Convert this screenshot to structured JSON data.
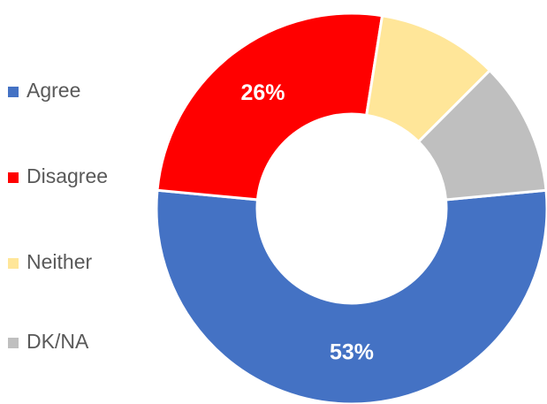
{
  "chart_data": {
    "type": "donut",
    "categories": [
      "Agree",
      "Disagree",
      "Neither",
      "DK/NA"
    ],
    "values": [
      53,
      26,
      10,
      11
    ],
    "value_labels": [
      "53%",
      "26%",
      null,
      null
    ],
    "colors": [
      "#4472c4",
      "#ff0000",
      "#ffe699",
      "#bfbfbf"
    ],
    "legend": "left"
  }
}
